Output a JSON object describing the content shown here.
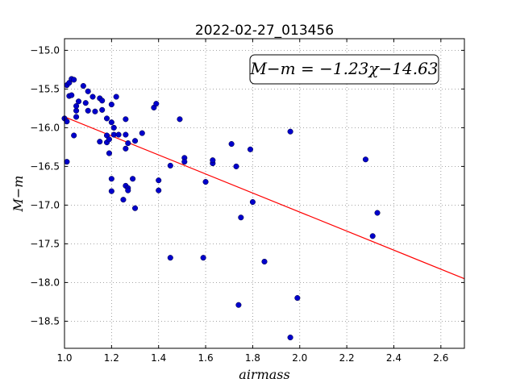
{
  "chart_data": {
    "type": "scatter",
    "title": "2022-02-27_013456",
    "xlabel": "airmass",
    "ylabel": "M−m",
    "xlim": [
      1.0,
      2.7
    ],
    "ylim": [
      -18.85,
      -14.85
    ],
    "xticks": [
      1.0,
      1.2,
      1.4,
      1.6,
      1.8,
      2.0,
      2.2,
      2.4,
      2.6
    ],
    "xtick_labels": [
      "1.0",
      "1.2",
      "1.4",
      "1.6",
      "1.8",
      "2.0",
      "2.2",
      "2.4",
      "2.6"
    ],
    "yticks": [
      -15.0,
      -15.5,
      -16.0,
      -16.5,
      -17.0,
      -17.5,
      -18.0,
      -18.5
    ],
    "ytick_labels": [
      "−15.0",
      "−15.5",
      "−16.0",
      "−16.5",
      "−17.0",
      "−17.5",
      "−18.0",
      "−18.5"
    ],
    "grid": true,
    "annotation": "M−m = −1.23χ−14.63",
    "fit": {
      "slope": -1.23,
      "intercept": -14.63,
      "color": "#ff0000"
    },
    "point_color": "#0000cc",
    "points": [
      {
        "x": 1.0,
        "y": -15.88
      },
      {
        "x": 1.01,
        "y": -15.92
      },
      {
        "x": 1.01,
        "y": -16.44
      },
      {
        "x": 1.01,
        "y": -15.45
      },
      {
        "x": 1.02,
        "y": -15.42
      },
      {
        "x": 1.03,
        "y": -15.37
      },
      {
        "x": 1.02,
        "y": -15.59
      },
      {
        "x": 1.03,
        "y": -15.58
      },
      {
        "x": 1.04,
        "y": -15.38
      },
      {
        "x": 1.04,
        "y": -16.1
      },
      {
        "x": 1.05,
        "y": -15.78
      },
      {
        "x": 1.05,
        "y": -15.72
      },
      {
        "x": 1.05,
        "y": -15.86
      },
      {
        "x": 1.06,
        "y": -15.66
      },
      {
        "x": 1.08,
        "y": -15.46
      },
      {
        "x": 1.09,
        "y": -15.68
      },
      {
        "x": 1.1,
        "y": -15.78
      },
      {
        "x": 1.1,
        "y": -15.53
      },
      {
        "x": 1.12,
        "y": -15.6
      },
      {
        "x": 1.13,
        "y": -15.79
      },
      {
        "x": 1.15,
        "y": -16.18
      },
      {
        "x": 1.15,
        "y": -15.62
      },
      {
        "x": 1.16,
        "y": -15.65
      },
      {
        "x": 1.16,
        "y": -15.77
      },
      {
        "x": 1.18,
        "y": -15.88
      },
      {
        "x": 1.18,
        "y": -16.1
      },
      {
        "x": 1.18,
        "y": -16.19
      },
      {
        "x": 1.19,
        "y": -16.15
      },
      {
        "x": 1.19,
        "y": -16.33
      },
      {
        "x": 1.2,
        "y": -15.7
      },
      {
        "x": 1.2,
        "y": -15.93
      },
      {
        "x": 1.2,
        "y": -16.66
      },
      {
        "x": 1.2,
        "y": -16.82
      },
      {
        "x": 1.21,
        "y": -16.09
      },
      {
        "x": 1.21,
        "y": -16.0
      },
      {
        "x": 1.22,
        "y": -15.6
      },
      {
        "x": 1.23,
        "y": -16.09
      },
      {
        "x": 1.25,
        "y": -16.93
      },
      {
        "x": 1.26,
        "y": -15.89
      },
      {
        "x": 1.26,
        "y": -16.09
      },
      {
        "x": 1.26,
        "y": -16.27
      },
      {
        "x": 1.26,
        "y": -16.75
      },
      {
        "x": 1.27,
        "y": -16.2
      },
      {
        "x": 1.27,
        "y": -16.78
      },
      {
        "x": 1.27,
        "y": -16.81
      },
      {
        "x": 1.29,
        "y": -16.66
      },
      {
        "x": 1.3,
        "y": -16.17
      },
      {
        "x": 1.3,
        "y": -17.04
      },
      {
        "x": 1.33,
        "y": -16.07
      },
      {
        "x": 1.38,
        "y": -15.74
      },
      {
        "x": 1.39,
        "y": -15.69
      },
      {
        "x": 1.4,
        "y": -16.68
      },
      {
        "x": 1.4,
        "y": -16.81
      },
      {
        "x": 1.45,
        "y": -16.49
      },
      {
        "x": 1.45,
        "y": -17.68
      },
      {
        "x": 1.49,
        "y": -15.89
      },
      {
        "x": 1.51,
        "y": -16.39
      },
      {
        "x": 1.51,
        "y": -16.44
      },
      {
        "x": 1.59,
        "y": -17.68
      },
      {
        "x": 1.6,
        "y": -16.7
      },
      {
        "x": 1.63,
        "y": -16.46
      },
      {
        "x": 1.63,
        "y": -16.42
      },
      {
        "x": 1.71,
        "y": -16.21
      },
      {
        "x": 1.73,
        "y": -16.5
      },
      {
        "x": 1.74,
        "y": -18.29
      },
      {
        "x": 1.75,
        "y": -17.16
      },
      {
        "x": 1.79,
        "y": -16.28
      },
      {
        "x": 1.8,
        "y": -16.96
      },
      {
        "x": 1.85,
        "y": -17.73
      },
      {
        "x": 1.96,
        "y": -16.05
      },
      {
        "x": 1.96,
        "y": -18.71
      },
      {
        "x": 1.99,
        "y": -18.2
      },
      {
        "x": 2.28,
        "y": -16.41
      },
      {
        "x": 2.31,
        "y": -17.4
      },
      {
        "x": 2.33,
        "y": -17.1
      }
    ]
  }
}
